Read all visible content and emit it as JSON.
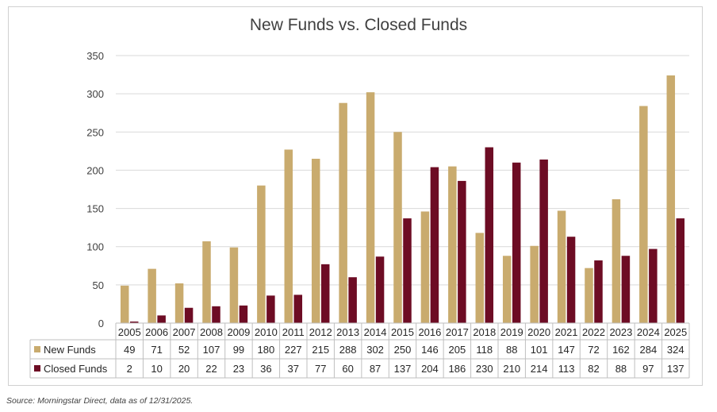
{
  "chart_data": {
    "type": "bar",
    "title": "New Funds vs. Closed Funds",
    "categories": [
      "2005",
      "2006",
      "2007",
      "2008",
      "2009",
      "2010",
      "2011",
      "2012",
      "2013",
      "2014",
      "2015",
      "2016",
      "2017",
      "2018",
      "2019",
      "2020",
      "2021",
      "2022",
      "2023",
      "2024",
      "2025"
    ],
    "series": [
      {
        "name": "New Funds",
        "color": "#c9ab6e",
        "values": [
          49,
          71,
          52,
          107,
          99,
          180,
          227,
          215,
          288,
          302,
          250,
          146,
          205,
          118,
          88,
          101,
          147,
          72,
          162,
          284,
          324
        ]
      },
      {
        "name": "Closed Funds",
        "color": "#6d0c24",
        "values": [
          2,
          10,
          20,
          22,
          23,
          36,
          37,
          77,
          60,
          87,
          137,
          204,
          186,
          230,
          210,
          214,
          113,
          82,
          88,
          97,
          137
        ]
      }
    ],
    "ylim": [
      0,
      350
    ],
    "yticks": [
      "0",
      "50",
      "100",
      "150",
      "200",
      "250",
      "300",
      "350"
    ],
    "grid": true,
    "legend": "data table below chart",
    "xlabel": "",
    "ylabel": ""
  },
  "source_note": "Source: Morningstar Direct, data as of 12/31/2025."
}
